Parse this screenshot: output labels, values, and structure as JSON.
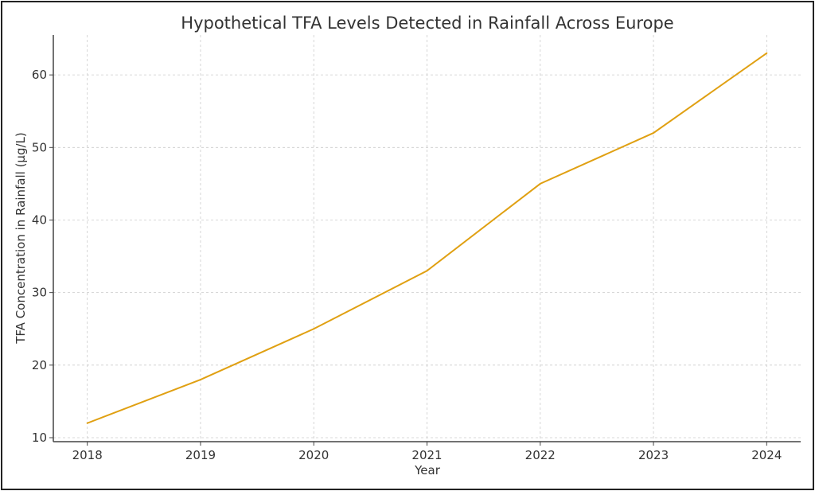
{
  "chart_data": {
    "type": "line",
    "title": "Hypothetical TFA Levels Detected in Rainfall Across Europe",
    "xlabel": "Year",
    "ylabel": "TFA Concentration in Rainfall (µg/L)",
    "x": [
      2018,
      2019,
      2020,
      2021,
      2022,
      2023,
      2024
    ],
    "series": [
      {
        "name": "TFA",
        "values": [
          12,
          18,
          25,
          33,
          45,
          52,
          63
        ],
        "color": "#E0A012"
      }
    ],
    "xlim": [
      2017.7,
      2024.3
    ],
    "ylim": [
      9.45,
      65.5
    ],
    "xticks": [
      "2018",
      "2019",
      "2020",
      "2021",
      "2022",
      "2023",
      "2024"
    ],
    "yticks": [
      10,
      20,
      30,
      40,
      50,
      60
    ],
    "grid": true,
    "legend": "none"
  }
}
